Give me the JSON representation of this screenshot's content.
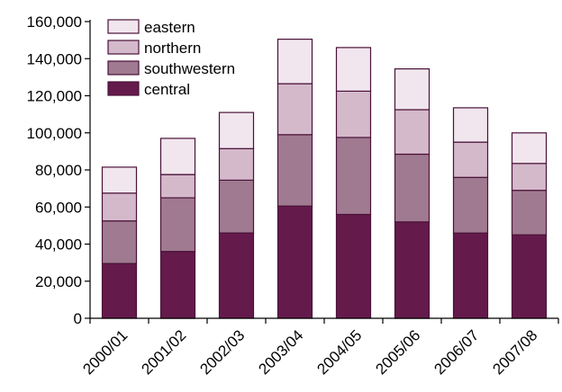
{
  "chart_data": {
    "type": "bar",
    "stacked": true,
    "categories": [
      "2000/01",
      "2001/02",
      "2002/03",
      "2003/04",
      "2004/05",
      "2005/06",
      "2006/07",
      "2007/08"
    ],
    "series": [
      {
        "name": "central",
        "color": "#651a4c",
        "values": [
          29500,
          36000,
          46000,
          60500,
          56000,
          52000,
          46000,
          45000
        ]
      },
      {
        "name": "southwestern",
        "color": "#a07a90",
        "values": [
          23000,
          29000,
          28500,
          38500,
          41500,
          36500,
          30000,
          24000
        ]
      },
      {
        "name": "northern",
        "color": "#d4b9cb",
        "values": [
          15000,
          12500,
          17000,
          27500,
          25000,
          24000,
          19000,
          14500
        ]
      },
      {
        "name": "eastern",
        "color": "#f1e6ee",
        "values": [
          14000,
          19500,
          19500,
          24000,
          23500,
          22000,
          18500,
          16500
        ]
      }
    ],
    "ylim": [
      0,
      160000
    ],
    "yticks": [
      0,
      20000,
      40000,
      60000,
      80000,
      100000,
      120000,
      140000,
      160000
    ],
    "ytick_labels": [
      "0",
      "20,000",
      "40,000",
      "60,000",
      "80,000",
      "100,000",
      "120,000",
      "140,000",
      "160,000"
    ],
    "legend_order": [
      "eastern",
      "northern",
      "southwestern",
      "central"
    ],
    "legend_position": "top-left",
    "grid": false,
    "title": "",
    "xlabel": "",
    "ylabel": ""
  }
}
